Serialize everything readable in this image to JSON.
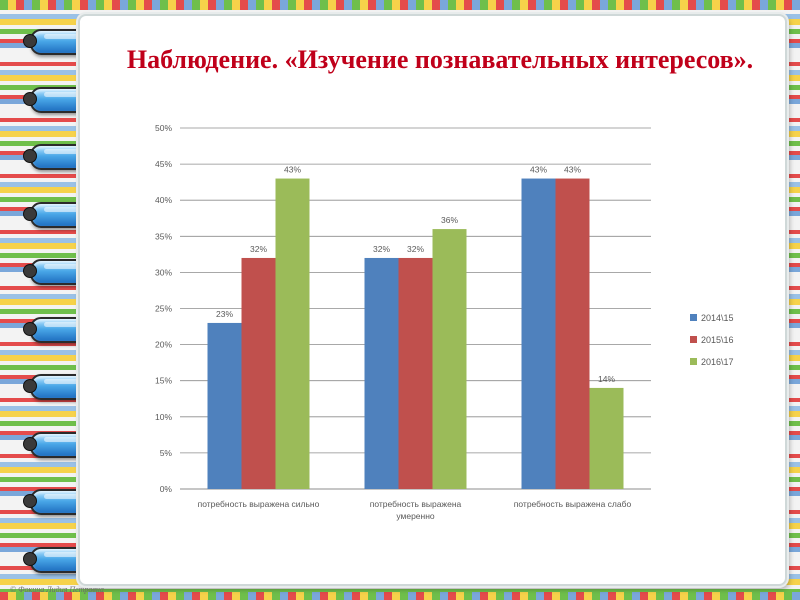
{
  "slide": {
    "title": "Наблюдение. «Изучение познавательных интересов».",
    "footer": "© Фокина Лидия Петровна"
  },
  "colors": {
    "title": "#c0001a",
    "series": [
      "#4f81bd",
      "#c0504d",
      "#9bbb59"
    ],
    "grid": "#8c8c8c",
    "text": "#595959"
  },
  "chart_data": {
    "type": "bar",
    "categories": [
      [
        "потребность выражена сильно"
      ],
      [
        "потребность выражена",
        "умеренно"
      ],
      [
        "потребность выражена слабо"
      ]
    ],
    "series": [
      {
        "name": "2014\\15",
        "values": [
          23,
          32,
          43
        ]
      },
      {
        "name": "2015\\16",
        "values": [
          32,
          32,
          43
        ]
      },
      {
        "name": "2016\\17",
        "values": [
          43,
          36,
          14
        ]
      }
    ],
    "value_labels": [
      [
        "23%",
        "32%",
        "43%"
      ],
      [
        "32%",
        "32%",
        "43%"
      ],
      [
        "43%",
        "36%",
        "14%"
      ]
    ],
    "yticks": [
      "0%",
      "5%",
      "10%",
      "15%",
      "20%",
      "25%",
      "30%",
      "35%",
      "40%",
      "45%",
      "50%"
    ],
    "ylim": [
      0,
      50
    ],
    "grid": true,
    "legend_position": "right"
  }
}
